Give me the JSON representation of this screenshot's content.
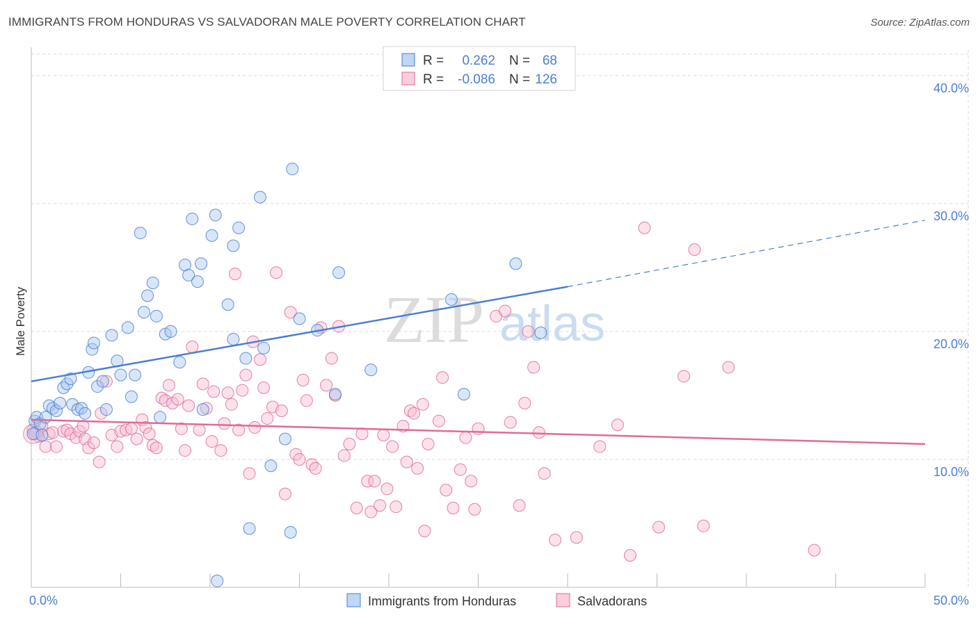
{
  "title": "IMMIGRANTS FROM HONDURAS VS SALVADORAN MALE POVERTY CORRELATION CHART",
  "source": "Source: ZipAtlas.com",
  "watermark": {
    "zip": "ZIP",
    "atlas": "atlas"
  },
  "colors": {
    "blue": "#4a7fd0",
    "blue_fill": "#a9c8f0",
    "pink": "#e06a96",
    "pink_fill": "#f6bcd0",
    "grid": "#d9d9d9",
    "axis_text": "#4a7fd0"
  },
  "chart_data": {
    "type": "scatter",
    "title": "IMMIGRANTS FROM HONDURAS VS SALVADORAN MALE POVERTY CORRELATION CHART",
    "xlabel": "",
    "ylabel": "Male Poverty",
    "xlim": [
      0,
      50
    ],
    "ylim": [
      0,
      42
    ],
    "x_tick_labels": [
      "0.0%",
      "50.0%"
    ],
    "y_ticks": [
      10,
      20,
      30,
      40
    ],
    "y_tick_labels": [
      "10.0%",
      "20.0%",
      "30.0%",
      "40.0%"
    ],
    "grid": true,
    "legend_position": "top-center",
    "legend": [
      {
        "series": "Immigrants from Honduras",
        "r_label": "R =",
        "r_value": "0.262",
        "n_label": "N =",
        "n_value": "68"
      },
      {
        "series": "Salvadorans",
        "r_label": "R =",
        "r_value": "-0.086",
        "n_label": "N =",
        "n_value": "126"
      }
    ],
    "series": [
      {
        "name": "Immigrants from Honduras",
        "color": "#4a7fd0",
        "trend": {
          "x0": 0,
          "y0": 16.1,
          "x1": 30,
          "y1": 23.5,
          "dash_to_x": 50,
          "dash_to_y": 28.7
        },
        "points": [
          [
            0.1,
            12.0
          ],
          [
            0.2,
            13.0
          ],
          [
            0.3,
            13.3
          ],
          [
            0.5,
            12.8
          ],
          [
            0.6,
            11.9
          ],
          [
            0.8,
            13.3
          ],
          [
            1.0,
            14.2
          ],
          [
            1.2,
            14.0
          ],
          [
            1.4,
            13.8
          ],
          [
            1.6,
            14.4
          ],
          [
            1.8,
            15.6
          ],
          [
            2.0,
            15.9
          ],
          [
            2.2,
            16.3
          ],
          [
            2.3,
            14.3
          ],
          [
            2.6,
            13.9
          ],
          [
            2.8,
            14.0
          ],
          [
            3.0,
            13.6
          ],
          [
            3.2,
            16.8
          ],
          [
            3.4,
            18.6
          ],
          [
            3.5,
            19.1
          ],
          [
            3.7,
            15.7
          ],
          [
            4.0,
            16.1
          ],
          [
            4.2,
            13.9
          ],
          [
            4.5,
            19.7
          ],
          [
            4.8,
            17.7
          ],
          [
            5.0,
            16.6
          ],
          [
            5.4,
            20.3
          ],
          [
            5.8,
            16.6
          ],
          [
            5.6,
            14.9
          ],
          [
            6.1,
            27.7
          ],
          [
            6.5,
            22.8
          ],
          [
            6.3,
            21.5
          ],
          [
            6.8,
            23.8
          ],
          [
            7.0,
            21.2
          ],
          [
            7.2,
            13.3
          ],
          [
            7.5,
            19.8
          ],
          [
            7.8,
            20.0
          ],
          [
            8.3,
            17.6
          ],
          [
            8.6,
            25.2
          ],
          [
            8.8,
            24.4
          ],
          [
            9.0,
            28.8
          ],
          [
            9.3,
            23.9
          ],
          [
            9.5,
            25.3
          ],
          [
            9.6,
            13.9
          ],
          [
            10.1,
            27.5
          ],
          [
            10.3,
            29.1
          ],
          [
            10.4,
            0.5
          ],
          [
            11.0,
            22.1
          ],
          [
            11.3,
            26.7
          ],
          [
            11.6,
            28.1
          ],
          [
            11.3,
            19.4
          ],
          [
            12.0,
            17.9
          ],
          [
            12.2,
            4.6
          ],
          [
            12.8,
            30.5
          ],
          [
            13.0,
            18.7
          ],
          [
            13.4,
            9.5
          ],
          [
            14.2,
            11.6
          ],
          [
            14.6,
            32.7
          ],
          [
            14.5,
            4.3
          ],
          [
            15.0,
            21.0
          ],
          [
            16.0,
            20.1
          ],
          [
            17.0,
            15.1
          ],
          [
            17.2,
            24.6
          ],
          [
            19.0,
            17.0
          ],
          [
            23.5,
            22.5
          ],
          [
            24.2,
            15.1
          ],
          [
            27.1,
            25.3
          ],
          [
            28.5,
            19.9
          ]
        ]
      },
      {
        "name": "Salvadorans",
        "color": "#e06a96",
        "trend": {
          "x0": 0,
          "y0": 13.1,
          "x1": 50,
          "y1": 11.2
        },
        "points": [
          [
            0.1,
            12.3
          ],
          [
            0.3,
            12.1
          ],
          [
            0.4,
            11.8
          ],
          [
            0.6,
            12.6
          ],
          [
            0.8,
            11.0
          ],
          [
            1.0,
            12.0
          ],
          [
            1.2,
            12.1
          ],
          [
            1.4,
            11.0
          ],
          [
            1.8,
            12.2
          ],
          [
            2.0,
            12.3
          ],
          [
            2.2,
            12.0
          ],
          [
            2.5,
            11.7
          ],
          [
            2.7,
            12.2
          ],
          [
            2.9,
            12.6
          ],
          [
            3.0,
            11.6
          ],
          [
            3.2,
            10.9
          ],
          [
            3.5,
            11.3
          ],
          [
            3.8,
            9.8
          ],
          [
            3.9,
            13.6
          ],
          [
            4.2,
            16.1
          ],
          [
            4.5,
            11.9
          ],
          [
            4.8,
            11.0
          ],
          [
            5.0,
            12.2
          ],
          [
            5.3,
            12.3
          ],
          [
            5.6,
            12.4
          ],
          [
            5.9,
            11.6
          ],
          [
            6.2,
            13.1
          ],
          [
            6.4,
            12.5
          ],
          [
            6.6,
            12.0
          ],
          [
            6.8,
            11.1
          ],
          [
            7.0,
            10.9
          ],
          [
            7.3,
            14.8
          ],
          [
            7.5,
            14.6
          ],
          [
            7.7,
            15.8
          ],
          [
            7.9,
            14.4
          ],
          [
            8.2,
            14.7
          ],
          [
            8.4,
            12.4
          ],
          [
            8.6,
            10.7
          ],
          [
            8.8,
            14.2
          ],
          [
            9.0,
            18.8
          ],
          [
            9.4,
            12.3
          ],
          [
            9.6,
            15.9
          ],
          [
            9.8,
            14.0
          ],
          [
            10.1,
            11.4
          ],
          [
            10.2,
            15.3
          ],
          [
            10.6,
            10.7
          ],
          [
            10.8,
            12.8
          ],
          [
            11.0,
            15.2
          ],
          [
            11.2,
            14.3
          ],
          [
            11.4,
            24.5
          ],
          [
            11.6,
            12.3
          ],
          [
            11.8,
            15.4
          ],
          [
            12.0,
            16.6
          ],
          [
            12.2,
            8.9
          ],
          [
            12.4,
            19.2
          ],
          [
            12.5,
            12.5
          ],
          [
            12.8,
            17.8
          ],
          [
            13.0,
            15.6
          ],
          [
            13.2,
            13.2
          ],
          [
            13.5,
            14.1
          ],
          [
            13.7,
            24.6
          ],
          [
            14.0,
            13.8
          ],
          [
            14.2,
            7.3
          ],
          [
            14.5,
            21.5
          ],
          [
            14.8,
            10.4
          ],
          [
            15.0,
            10.0
          ],
          [
            15.2,
            16.2
          ],
          [
            15.4,
            14.6
          ],
          [
            15.7,
            9.6
          ],
          [
            15.9,
            9.3
          ],
          [
            16.2,
            20.3
          ],
          [
            16.5,
            15.8
          ],
          [
            16.8,
            17.9
          ],
          [
            17.0,
            15.0
          ],
          [
            17.2,
            20.4
          ],
          [
            17.5,
            10.3
          ],
          [
            17.8,
            11.2
          ],
          [
            18.2,
            6.2
          ],
          [
            18.5,
            12.0
          ],
          [
            18.8,
            8.3
          ],
          [
            19.0,
            5.9
          ],
          [
            19.2,
            8.3
          ],
          [
            19.5,
            6.4
          ],
          [
            19.7,
            11.9
          ],
          [
            19.9,
            7.7
          ],
          [
            20.2,
            11.0
          ],
          [
            20.4,
            6.3
          ],
          [
            20.8,
            12.6
          ],
          [
            21.0,
            9.8
          ],
          [
            21.2,
            13.8
          ],
          [
            21.4,
            13.6
          ],
          [
            21.6,
            9.3
          ],
          [
            21.9,
            14.3
          ],
          [
            22.0,
            4.4
          ],
          [
            22.2,
            11.2
          ],
          [
            22.8,
            13.0
          ],
          [
            23.0,
            16.4
          ],
          [
            23.2,
            7.6
          ],
          [
            23.6,
            6.2
          ],
          [
            24.0,
            9.2
          ],
          [
            24.3,
            11.7
          ],
          [
            24.6,
            8.3
          ],
          [
            24.8,
            6.1
          ],
          [
            25.0,
            12.4
          ],
          [
            26.0,
            21.2
          ],
          [
            26.5,
            21.6
          ],
          [
            26.8,
            12.9
          ],
          [
            27.3,
            6.4
          ],
          [
            27.6,
            14.4
          ],
          [
            27.8,
            20.0
          ],
          [
            28.1,
            17.2
          ],
          [
            28.4,
            12.1
          ],
          [
            28.7,
            8.9
          ],
          [
            29.3,
            3.7
          ],
          [
            30.5,
            3.9
          ],
          [
            31.8,
            11.0
          ],
          [
            32.8,
            12.7
          ],
          [
            33.5,
            2.5
          ],
          [
            34.3,
            28.1
          ],
          [
            35.1,
            4.7
          ],
          [
            36.5,
            16.5
          ],
          [
            37.1,
            26.4
          ],
          [
            37.6,
            4.8
          ],
          [
            39.0,
            17.2
          ],
          [
            43.8,
            2.9
          ],
          [
            0.2,
            12.0
          ]
        ]
      }
    ]
  },
  "bottom_legend": [
    {
      "label": "Immigrants from Honduras"
    },
    {
      "label": "Salvadorans"
    }
  ]
}
